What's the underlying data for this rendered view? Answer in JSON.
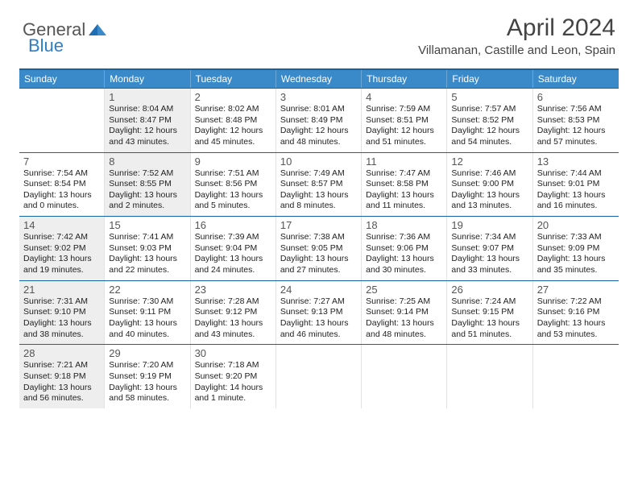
{
  "logo": {
    "part1": "General",
    "part2": "Blue"
  },
  "title": "April 2024",
  "location": "Villamanan, Castille and Leon, Spain",
  "styling": {
    "header_bg": "#3a8aca",
    "header_border_top": "#1462a0",
    "week_border": "#1462a0",
    "cell_border": "#e2e2e2",
    "shaded_bg": "#eeeeee",
    "page_bg": "#ffffff",
    "title_color": "#444444",
    "dow_text_color": "#ffffff",
    "body_text_color": "#222222",
    "logo_gray": "#555555",
    "logo_blue": "#2f7ec2",
    "month_title_fontsize": 30,
    "location_fontsize": 15,
    "dow_fontsize": 12,
    "daynum_fontsize": 13,
    "dayline_fontsize": 10.5
  },
  "days_of_week": [
    "Sunday",
    "Monday",
    "Tuesday",
    "Wednesday",
    "Thursday",
    "Friday",
    "Saturday"
  ],
  "weeks": [
    [
      {
        "empty": true
      },
      {
        "n": "1",
        "shaded": true,
        "sr": "Sunrise: 8:04 AM",
        "ss": "Sunset: 8:47 PM",
        "d1": "Daylight: 12 hours",
        "d2": "and 43 minutes."
      },
      {
        "n": "2",
        "sr": "Sunrise: 8:02 AM",
        "ss": "Sunset: 8:48 PM",
        "d1": "Daylight: 12 hours",
        "d2": "and 45 minutes."
      },
      {
        "n": "3",
        "sr": "Sunrise: 8:01 AM",
        "ss": "Sunset: 8:49 PM",
        "d1": "Daylight: 12 hours",
        "d2": "and 48 minutes."
      },
      {
        "n": "4",
        "sr": "Sunrise: 7:59 AM",
        "ss": "Sunset: 8:51 PM",
        "d1": "Daylight: 12 hours",
        "d2": "and 51 minutes."
      },
      {
        "n": "5",
        "sr": "Sunrise: 7:57 AM",
        "ss": "Sunset: 8:52 PM",
        "d1": "Daylight: 12 hours",
        "d2": "and 54 minutes."
      },
      {
        "n": "6",
        "sr": "Sunrise: 7:56 AM",
        "ss": "Sunset: 8:53 PM",
        "d1": "Daylight: 12 hours",
        "d2": "and 57 minutes."
      }
    ],
    [
      {
        "n": "7",
        "sr": "Sunrise: 7:54 AM",
        "ss": "Sunset: 8:54 PM",
        "d1": "Daylight: 13 hours",
        "d2": "and 0 minutes."
      },
      {
        "n": "8",
        "shaded": true,
        "sr": "Sunrise: 7:52 AM",
        "ss": "Sunset: 8:55 PM",
        "d1": "Daylight: 13 hours",
        "d2": "and 2 minutes."
      },
      {
        "n": "9",
        "sr": "Sunrise: 7:51 AM",
        "ss": "Sunset: 8:56 PM",
        "d1": "Daylight: 13 hours",
        "d2": "and 5 minutes."
      },
      {
        "n": "10",
        "sr": "Sunrise: 7:49 AM",
        "ss": "Sunset: 8:57 PM",
        "d1": "Daylight: 13 hours",
        "d2": "and 8 minutes."
      },
      {
        "n": "11",
        "sr": "Sunrise: 7:47 AM",
        "ss": "Sunset: 8:58 PM",
        "d1": "Daylight: 13 hours",
        "d2": "and 11 minutes."
      },
      {
        "n": "12",
        "sr": "Sunrise: 7:46 AM",
        "ss": "Sunset: 9:00 PM",
        "d1": "Daylight: 13 hours",
        "d2": "and 13 minutes."
      },
      {
        "n": "13",
        "sr": "Sunrise: 7:44 AM",
        "ss": "Sunset: 9:01 PM",
        "d1": "Daylight: 13 hours",
        "d2": "and 16 minutes."
      }
    ],
    [
      {
        "n": "14",
        "shaded": true,
        "sr": "Sunrise: 7:42 AM",
        "ss": "Sunset: 9:02 PM",
        "d1": "Daylight: 13 hours",
        "d2": "and 19 minutes."
      },
      {
        "n": "15",
        "sr": "Sunrise: 7:41 AM",
        "ss": "Sunset: 9:03 PM",
        "d1": "Daylight: 13 hours",
        "d2": "and 22 minutes."
      },
      {
        "n": "16",
        "sr": "Sunrise: 7:39 AM",
        "ss": "Sunset: 9:04 PM",
        "d1": "Daylight: 13 hours",
        "d2": "and 24 minutes."
      },
      {
        "n": "17",
        "sr": "Sunrise: 7:38 AM",
        "ss": "Sunset: 9:05 PM",
        "d1": "Daylight: 13 hours",
        "d2": "and 27 minutes."
      },
      {
        "n": "18",
        "sr": "Sunrise: 7:36 AM",
        "ss": "Sunset: 9:06 PM",
        "d1": "Daylight: 13 hours",
        "d2": "and 30 minutes."
      },
      {
        "n": "19",
        "sr": "Sunrise: 7:34 AM",
        "ss": "Sunset: 9:07 PM",
        "d1": "Daylight: 13 hours",
        "d2": "and 33 minutes."
      },
      {
        "n": "20",
        "sr": "Sunrise: 7:33 AM",
        "ss": "Sunset: 9:09 PM",
        "d1": "Daylight: 13 hours",
        "d2": "and 35 minutes."
      }
    ],
    [
      {
        "n": "21",
        "shaded": true,
        "sr": "Sunrise: 7:31 AM",
        "ss": "Sunset: 9:10 PM",
        "d1": "Daylight: 13 hours",
        "d2": "and 38 minutes."
      },
      {
        "n": "22",
        "sr": "Sunrise: 7:30 AM",
        "ss": "Sunset: 9:11 PM",
        "d1": "Daylight: 13 hours",
        "d2": "and 40 minutes."
      },
      {
        "n": "23",
        "sr": "Sunrise: 7:28 AM",
        "ss": "Sunset: 9:12 PM",
        "d1": "Daylight: 13 hours",
        "d2": "and 43 minutes."
      },
      {
        "n": "24",
        "sr": "Sunrise: 7:27 AM",
        "ss": "Sunset: 9:13 PM",
        "d1": "Daylight: 13 hours",
        "d2": "and 46 minutes."
      },
      {
        "n": "25",
        "sr": "Sunrise: 7:25 AM",
        "ss": "Sunset: 9:14 PM",
        "d1": "Daylight: 13 hours",
        "d2": "and 48 minutes."
      },
      {
        "n": "26",
        "sr": "Sunrise: 7:24 AM",
        "ss": "Sunset: 9:15 PM",
        "d1": "Daylight: 13 hours",
        "d2": "and 51 minutes."
      },
      {
        "n": "27",
        "sr": "Sunrise: 7:22 AM",
        "ss": "Sunset: 9:16 PM",
        "d1": "Daylight: 13 hours",
        "d2": "and 53 minutes."
      }
    ],
    [
      {
        "n": "28",
        "shaded": true,
        "sr": "Sunrise: 7:21 AM",
        "ss": "Sunset: 9:18 PM",
        "d1": "Daylight: 13 hours",
        "d2": "and 56 minutes."
      },
      {
        "n": "29",
        "sr": "Sunrise: 7:20 AM",
        "ss": "Sunset: 9:19 PM",
        "d1": "Daylight: 13 hours",
        "d2": "and 58 minutes."
      },
      {
        "n": "30",
        "sr": "Sunrise: 7:18 AM",
        "ss": "Sunset: 9:20 PM",
        "d1": "Daylight: 14 hours",
        "d2": "and 1 minute."
      },
      {
        "empty": true
      },
      {
        "empty": true
      },
      {
        "empty": true
      },
      {
        "empty": true
      }
    ]
  ]
}
